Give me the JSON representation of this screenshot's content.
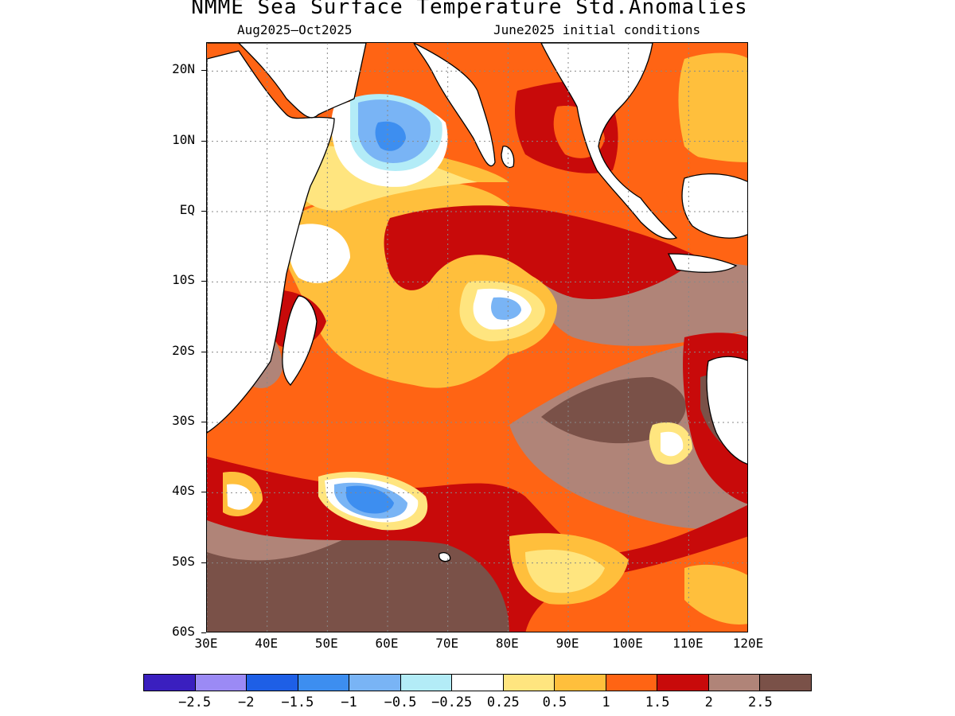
{
  "title": "NMME Sea Surface Temperature Std.Anomalies",
  "subtitle_left": "Aug2025–Oct2025",
  "subtitle_right": "June2025 initial conditions",
  "map": {
    "lon_range": [
      30,
      120
    ],
    "lat_range": [
      -60,
      24
    ],
    "lat_ticks": [
      {
        "label": "20N",
        "value": 20
      },
      {
        "label": "10N",
        "value": 10
      },
      {
        "label": "EQ",
        "value": 0
      },
      {
        "label": "10S",
        "value": -10
      },
      {
        "label": "20S",
        "value": -20
      },
      {
        "label": "30S",
        "value": -30
      },
      {
        "label": "40S",
        "value": -40
      },
      {
        "label": "50S",
        "value": -50
      },
      {
        "label": "60S",
        "value": -60
      }
    ],
    "lon_ticks": [
      {
        "label": "30E",
        "value": 30
      },
      {
        "label": "40E",
        "value": 40
      },
      {
        "label": "50E",
        "value": 50
      },
      {
        "label": "60E",
        "value": 60
      },
      {
        "label": "70E",
        "value": 70
      },
      {
        "label": "80E",
        "value": 80
      },
      {
        "label": "90E",
        "value": 90
      },
      {
        "label": "100E",
        "value": 100
      },
      {
        "label": "110E",
        "value": 110
      },
      {
        "label": "120E",
        "value": 120
      }
    ],
    "grid": "dotted",
    "anomaly_regions": [
      {
        "name": "south-ocean-base",
        "level": 1.5
      },
      {
        "name": "southwest-indian-high",
        "level": 2.5
      },
      {
        "name": "southeast-indian-high",
        "level": 2.5
      },
      {
        "name": "central-warm-band",
        "level": 1
      },
      {
        "name": "equatorial-warm-tongue",
        "level": 2
      },
      {
        "name": "arabian-sea-cool",
        "level": -1
      },
      {
        "name": "central-cool-patch",
        "level": -0.5
      },
      {
        "name": "southwest-cool-patch",
        "level": -1.5
      },
      {
        "name": "bay-of-bengal-warm",
        "level": 2
      },
      {
        "name": "south-china-sea-warm",
        "level": 1
      },
      {
        "name": "australia-west-coast",
        "level": 2
      }
    ]
  },
  "colorbar": {
    "colors": [
      "#3a1fbf",
      "#9b8af5",
      "#1e5fe6",
      "#3d8ef0",
      "#79b4f5",
      "#b3ecf7",
      "#ffffff",
      "#ffe57f",
      "#ffbf3c",
      "#ff6414",
      "#c80a0a",
      "#b08478",
      "#7a5148"
    ],
    "labels": [
      "−2.5",
      "−2",
      "−1.5",
      "−1",
      "−0.5",
      "−0.25",
      "0.25",
      "0.5",
      "1",
      "1.5",
      "2",
      "2.5"
    ]
  }
}
